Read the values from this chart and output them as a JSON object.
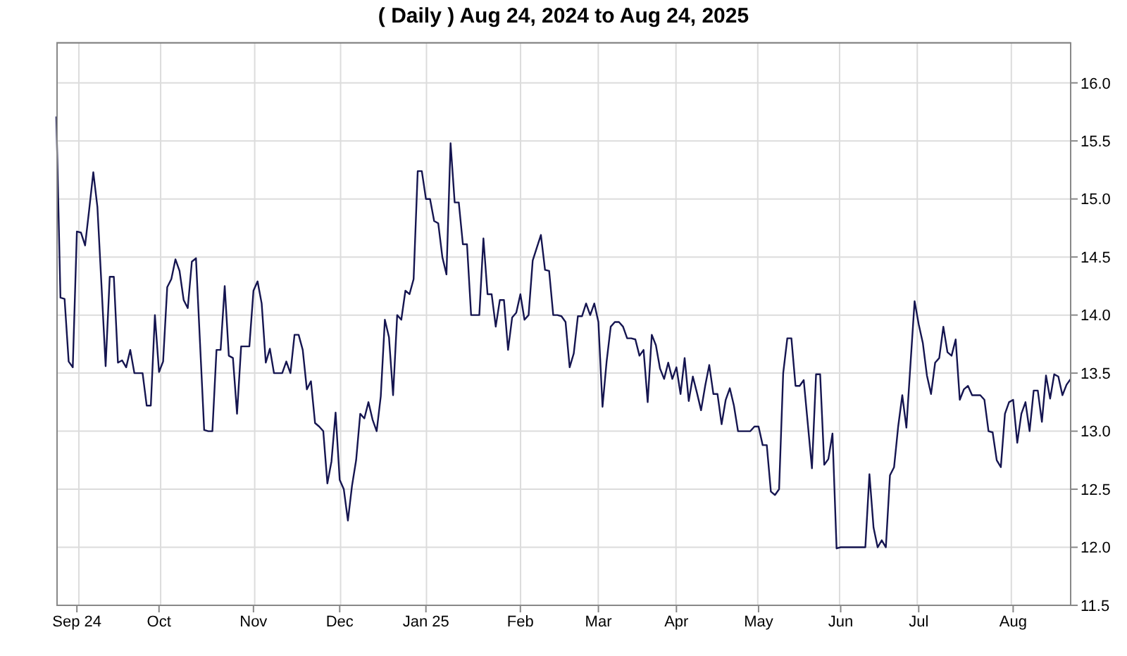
{
  "chart_data": {
    "type": "line",
    "title": "( Daily ) Aug 24, 2024 to Aug 24, 2025",
    "categories": [
      null,
      null,
      null,
      null,
      null,
      "Sep 24",
      null,
      null,
      null,
      null,
      null,
      null,
      null,
      null,
      null,
      null,
      null,
      null,
      null,
      null,
      null,
      null,
      null,
      null,
      null,
      "Oct",
      null,
      null,
      null,
      null,
      null,
      null,
      null,
      null,
      null,
      null,
      null,
      null,
      null,
      null,
      null,
      null,
      null,
      null,
      null,
      null,
      null,
      null,
      "Nov",
      null,
      null,
      null,
      null,
      null,
      null,
      null,
      null,
      null,
      null,
      null,
      null,
      null,
      null,
      null,
      null,
      null,
      null,
      null,
      null,
      "Dec",
      null,
      null,
      null,
      null,
      null,
      null,
      null,
      null,
      null,
      null,
      null,
      null,
      null,
      null,
      null,
      null,
      null,
      null,
      null,
      null,
      "Jan 25",
      null,
      null,
      null,
      null,
      null,
      null,
      null,
      null,
      null,
      null,
      null,
      null,
      null,
      null,
      null,
      null,
      null,
      null,
      null,
      null,
      null,
      null,
      "Feb",
      null,
      null,
      null,
      null,
      null,
      null,
      null,
      null,
      null,
      null,
      null,
      null,
      null,
      null,
      null,
      null,
      null,
      null,
      "Mar",
      null,
      null,
      null,
      null,
      null,
      null,
      null,
      null,
      null,
      null,
      null,
      null,
      null,
      null,
      null,
      null,
      null,
      null,
      "Apr",
      null,
      null,
      null,
      null,
      null,
      null,
      null,
      null,
      null,
      null,
      null,
      null,
      null,
      null,
      null,
      null,
      null,
      null,
      null,
      "May",
      null,
      null,
      null,
      null,
      null,
      null,
      null,
      null,
      null,
      null,
      null,
      null,
      null,
      null,
      null,
      null,
      null,
      null,
      null,
      "Jun",
      null,
      null,
      null,
      null,
      null,
      null,
      null,
      null,
      null,
      null,
      null,
      null,
      null,
      null,
      null,
      null,
      null,
      null,
      "Jul",
      null,
      null,
      null,
      null,
      null,
      null,
      null,
      null,
      null,
      null,
      null,
      null,
      null,
      null,
      null,
      null,
      null,
      null,
      null,
      null,
      null,
      null,
      "Aug",
      null,
      null,
      null,
      null,
      null,
      null,
      null,
      null,
      null,
      null,
      null,
      null,
      null,
      null
    ],
    "series": [
      {
        "color": "#151550",
        "values": [
          15.71,
          14.15,
          14.14,
          13.6,
          13.55,
          14.72,
          14.71,
          14.6,
          14.91,
          15.23,
          14.93,
          14.25,
          13.56,
          14.33,
          14.33,
          13.59,
          13.61,
          13.55,
          13.7,
          13.5,
          13.5,
          13.5,
          13.22,
          13.22,
          14.0,
          13.51,
          13.6,
          14.24,
          14.31,
          14.48,
          14.38,
          14.13,
          14.06,
          14.46,
          14.49,
          13.75,
          13.01,
          13.0,
          13.0,
          13.7,
          13.7,
          14.25,
          13.65,
          13.63,
          13.15,
          13.73,
          13.73,
          13.73,
          14.21,
          14.29,
          14.1,
          13.59,
          13.71,
          13.5,
          13.5,
          13.5,
          13.6,
          13.5,
          13.83,
          13.83,
          13.7,
          13.36,
          13.43,
          13.07,
          13.04,
          13.0,
          12.55,
          12.74,
          13.16,
          12.58,
          12.5,
          12.23,
          12.53,
          12.75,
          13.15,
          13.11,
          13.25,
          13.1,
          13.0,
          13.3,
          13.96,
          13.81,
          13.31,
          14.0,
          13.96,
          14.21,
          14.18,
          14.31,
          15.24,
          15.24,
          15.0,
          15.0,
          14.81,
          14.79,
          14.5,
          14.35,
          15.48,
          14.97,
          14.97,
          14.61,
          14.61,
          14.0,
          14.0,
          14.0,
          14.66,
          14.18,
          14.18,
          13.9,
          14.13,
          14.13,
          13.7,
          13.98,
          14.02,
          14.18,
          13.96,
          14.0,
          14.47,
          14.58,
          14.69,
          14.39,
          14.38,
          14.0,
          14.0,
          13.99,
          13.94,
          13.55,
          13.67,
          13.99,
          13.99,
          14.1,
          14.0,
          14.1,
          13.94,
          13.21,
          13.6,
          13.9,
          13.94,
          13.94,
          13.9,
          13.8,
          13.8,
          13.79,
          13.65,
          13.7,
          13.25,
          13.83,
          13.74,
          13.54,
          13.45,
          13.59,
          13.45,
          13.55,
          13.32,
          13.63,
          13.26,
          13.47,
          13.33,
          13.18,
          13.39,
          13.57,
          13.32,
          13.32,
          13.06,
          13.27,
          13.37,
          13.22,
          13.0,
          13.0,
          13.0,
          13.0,
          13.04,
          13.04,
          12.88,
          12.88,
          12.48,
          12.45,
          12.5,
          13.5,
          13.8,
          13.8,
          13.39,
          13.39,
          13.44,
          13.06,
          12.68,
          13.49,
          13.49,
          12.71,
          12.76,
          12.98,
          11.99,
          12.0,
          12.0,
          12.0,
          12.0,
          12.0,
          12.0,
          12.0,
          12.63,
          12.17,
          12.0,
          12.06,
          12.0,
          12.62,
          12.69,
          13.04,
          13.31,
          13.03,
          13.58,
          14.12,
          13.92,
          13.76,
          13.48,
          13.32,
          13.59,
          13.63,
          13.9,
          13.68,
          13.65,
          13.79,
          13.27,
          13.36,
          13.39,
          13.31,
          13.31,
          13.31,
          13.27,
          13.0,
          12.99,
          12.75,
          12.69,
          13.15,
          13.25,
          13.27,
          12.9,
          13.15,
          13.25,
          13.0,
          13.35,
          13.35,
          13.08,
          13.48,
          13.28,
          13.49,
          13.47,
          13.31,
          13.4,
          13.45
        ]
      }
    ],
    "ylim": [
      11.5,
      16.35
    ],
    "yticks": [
      {
        "value": 11.5,
        "label": "11.5"
      },
      {
        "value": 12,
        "label": "12.0"
      },
      {
        "value": 12.5,
        "label": "12.5"
      },
      {
        "value": 13,
        "label": "13.0"
      },
      {
        "value": 13.5,
        "label": "13.5"
      },
      {
        "value": 14,
        "label": "14.0"
      },
      {
        "value": 14.5,
        "label": "14.5"
      },
      {
        "value": 15,
        "label": "15.0"
      },
      {
        "value": 15.5,
        "label": "15.5"
      },
      {
        "value": 16,
        "label": "16.0"
      }
    ],
    "grid": true,
    "marker": "none"
  }
}
